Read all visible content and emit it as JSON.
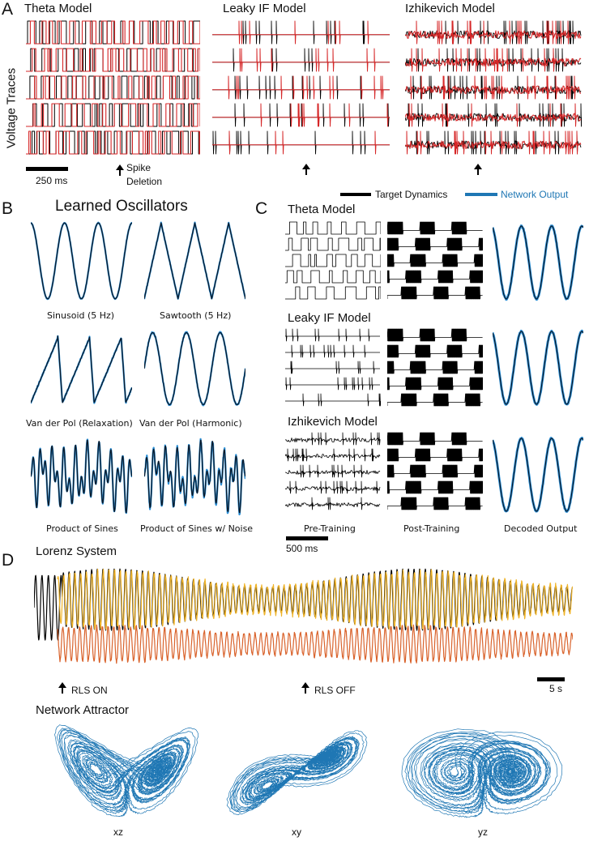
{
  "panelA": {
    "letter": "A",
    "ylabel": "Voltage Traces",
    "models": [
      "Theta Model",
      "Leaky IF Model",
      "Izhikevich Model"
    ],
    "scalebar": "250 ms",
    "annotation_line1": "Spike",
    "annotation_line2": "Deletion",
    "legend_target": "Target Dynamics",
    "legend_network": "Network Output",
    "colors": {
      "target": "#000000",
      "network": "#d62728",
      "output": "#1f77b4"
    }
  },
  "panelB": {
    "letter": "B",
    "title": "Learned Oscillators",
    "labels": [
      "Sinusoid (5 Hz)",
      "Sawtooth (5 Hz)",
      "Van der Pol (Relaxation)",
      "Van der Pol (Harmonic)",
      "Product of Sines",
      "Product of Sines w/ Noise"
    ]
  },
  "panelC": {
    "letter": "C",
    "models": [
      "Theta Model",
      "Leaky IF Model",
      "Izhikevich Model"
    ],
    "col_labels": [
      "Pre-Training",
      "Post-Training",
      "Decoded Output"
    ],
    "scalebar": "500 ms"
  },
  "panelD": {
    "letter": "D",
    "title": "Lorenz System",
    "rls_on": "RLS ON",
    "rls_off": "RLS OFF",
    "scalebar": "5 s",
    "attractor_title": "Network Attractor",
    "planes": [
      "xz",
      "xy",
      "yz"
    ],
    "colors": {
      "x": "#f0b429",
      "y": "#d9622b",
      "target": "#000000"
    }
  }
}
